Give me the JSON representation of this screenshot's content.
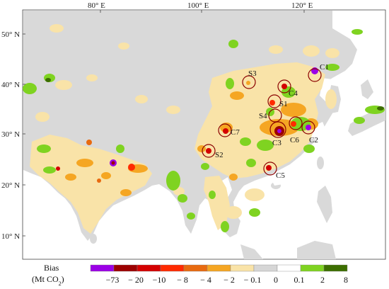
{
  "map": {
    "lon_ticks": [
      "80° E",
      "100° E",
      "120° E"
    ],
    "lat_ticks": [
      "50° N",
      "40° N",
      "30° N",
      "20° N",
      "10° N"
    ],
    "site_labels": [
      "C1",
      "C2",
      "C3",
      "C4",
      "C5",
      "C6",
      "C7",
      "S1",
      "S2",
      "S3",
      "S4"
    ]
  },
  "legend": {
    "title_line1": "Bias",
    "title_line2": "(Mt CO",
    "title_sub": "2",
    "title_end": ")",
    "tick_labels": [
      "−73",
      "− 20",
      "−10",
      "− 8",
      "− 4",
      "− 2",
      "− 0.1",
      "0",
      "0.1",
      "2",
      "8"
    ],
    "colors": [
      "#9b00e6",
      "#9c0000",
      "#d40000",
      "#ff2a00",
      "#e86a10",
      "#f5a623",
      "#f9e3a8",
      "#d6d6d6",
      "#ffffff",
      "#7fd321",
      "#3c6e00"
    ]
  },
  "colors": {
    "land": "#d9d9d9",
    "ocean": "#ffffff",
    "positive_small": "#7fd321",
    "negative_small": "#f9e3a8",
    "negative_mid": "#f5a623"
  }
}
